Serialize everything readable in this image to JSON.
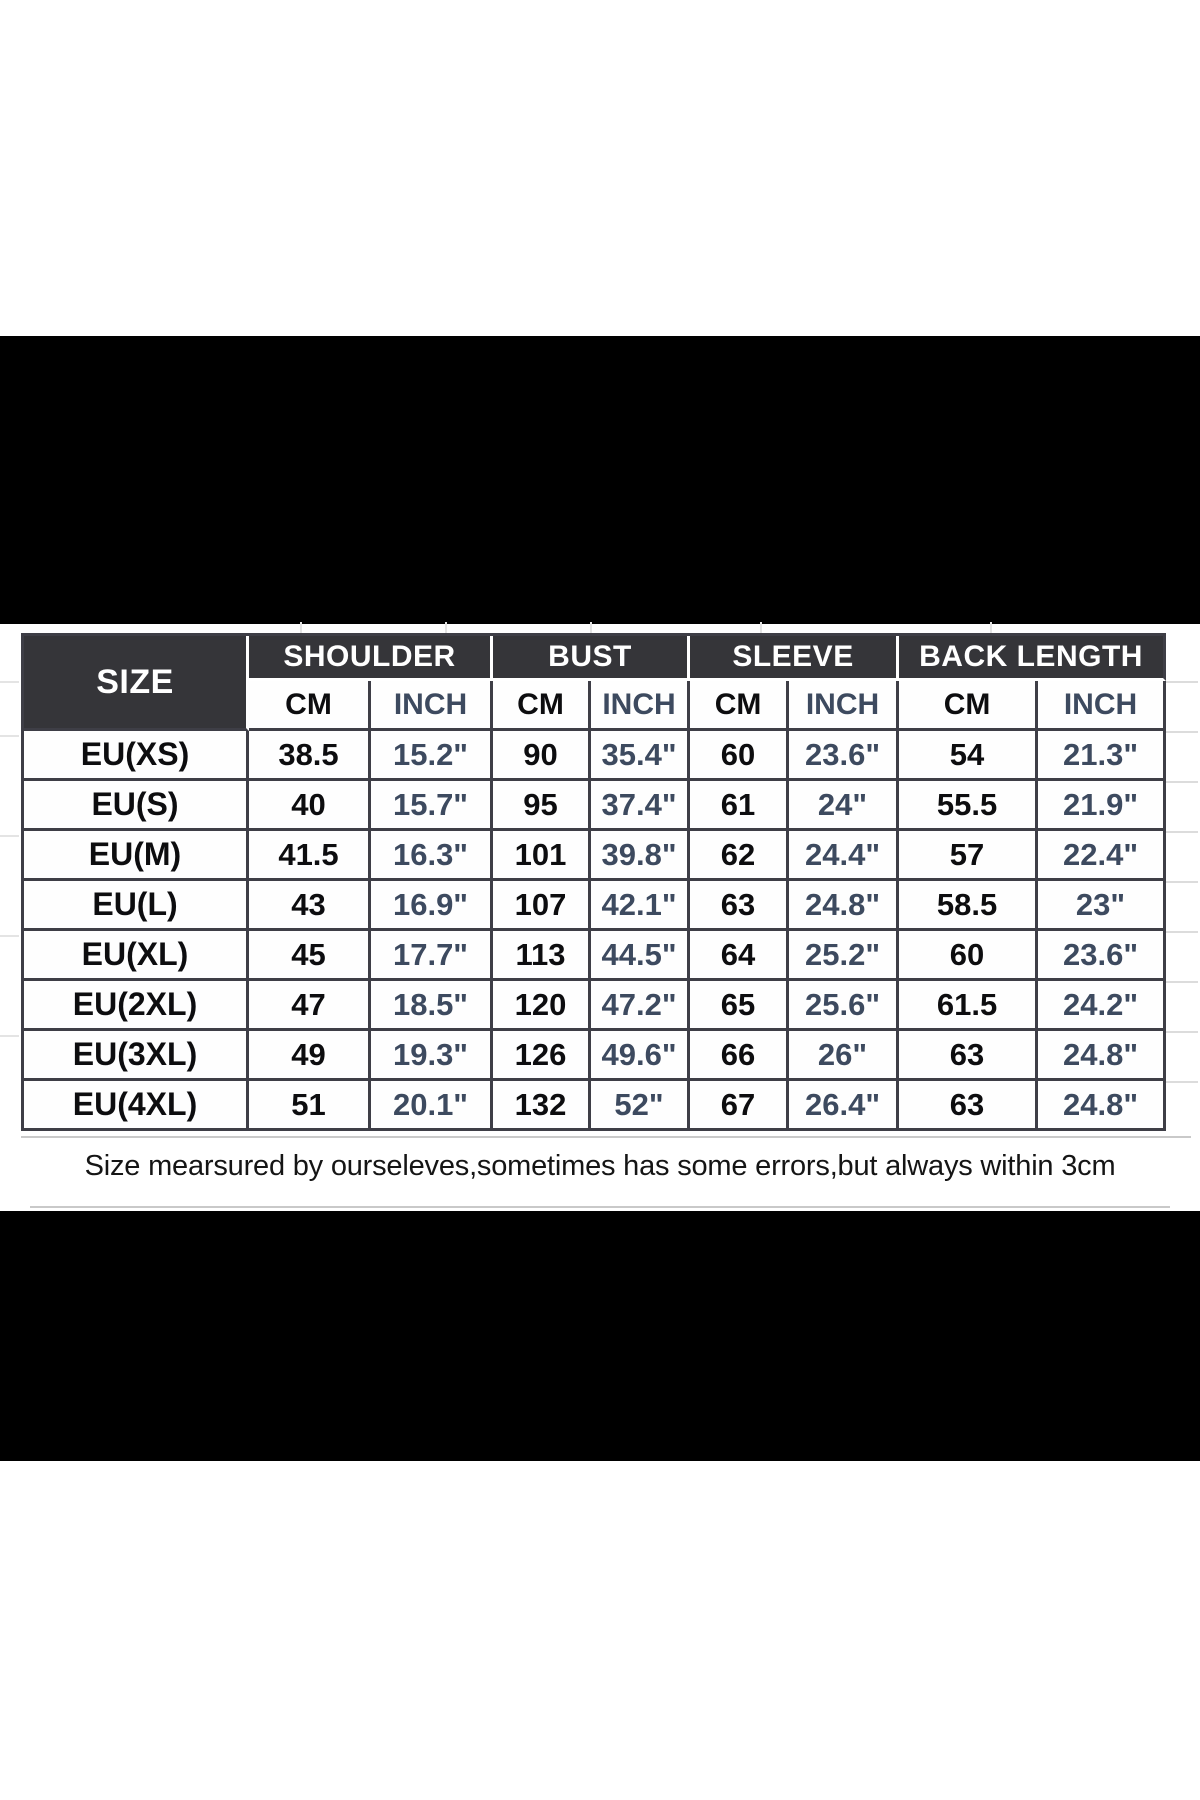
{
  "note": "Size mearsured by ourseleves,sometimes has some errors,but always within 3cm",
  "table": {
    "size_header": "SIZE",
    "groups": [
      {
        "label": "SHOULDER",
        "sub": [
          "CM",
          "INCH"
        ]
      },
      {
        "label": "BUST",
        "sub": [
          "CM",
          "INCH"
        ]
      },
      {
        "label": "SLEEVE",
        "sub": [
          "CM",
          "INCH"
        ]
      },
      {
        "label": "BACK LENGTH",
        "sub": [
          "CM",
          "INCH"
        ]
      }
    ],
    "rows": [
      {
        "size": "EU(XS)",
        "values": [
          "38.5",
          "15.2\"",
          "90",
          "35.4\"",
          "60",
          "23.6\"",
          "54",
          "21.3\""
        ]
      },
      {
        "size": "EU(S)",
        "values": [
          "40",
          "15.7\"",
          "95",
          "37.4\"",
          "61",
          "24\"",
          "55.5",
          "21.9\""
        ]
      },
      {
        "size": "EU(M)",
        "values": [
          "41.5",
          "16.3\"",
          "101",
          "39.8\"",
          "62",
          "24.4\"",
          "57",
          "22.4\""
        ]
      },
      {
        "size": "EU(L)",
        "values": [
          "43",
          "16.9\"",
          "107",
          "42.1\"",
          "63",
          "24.8\"",
          "58.5",
          "23\""
        ]
      },
      {
        "size": "EU(XL)",
        "values": [
          "45",
          "17.7\"",
          "113",
          "44.5\"",
          "64",
          "25.2\"",
          "60",
          "23.6\""
        ]
      },
      {
        "size": "EU(2XL)",
        "values": [
          "47",
          "18.5\"",
          "120",
          "47.2\"",
          "65",
          "25.6\"",
          "61.5",
          "24.2\""
        ]
      },
      {
        "size": "EU(3XL)",
        "values": [
          "49",
          "19.3\"",
          "126",
          "49.6\"",
          "66",
          "26\"",
          "63",
          "24.8\""
        ]
      },
      {
        "size": "EU(4XL)",
        "values": [
          "51",
          "20.1\"",
          "132",
          "52\"",
          "67",
          "26.4\"",
          "63",
          "24.8\""
        ]
      }
    ]
  },
  "colors": {
    "header_bg": "#353539",
    "grid_line": "#3e3e46",
    "inch_text": "#3d4a5f",
    "cm_text": "#0d0d0f",
    "note_text": "#151515",
    "band": "#000000"
  }
}
